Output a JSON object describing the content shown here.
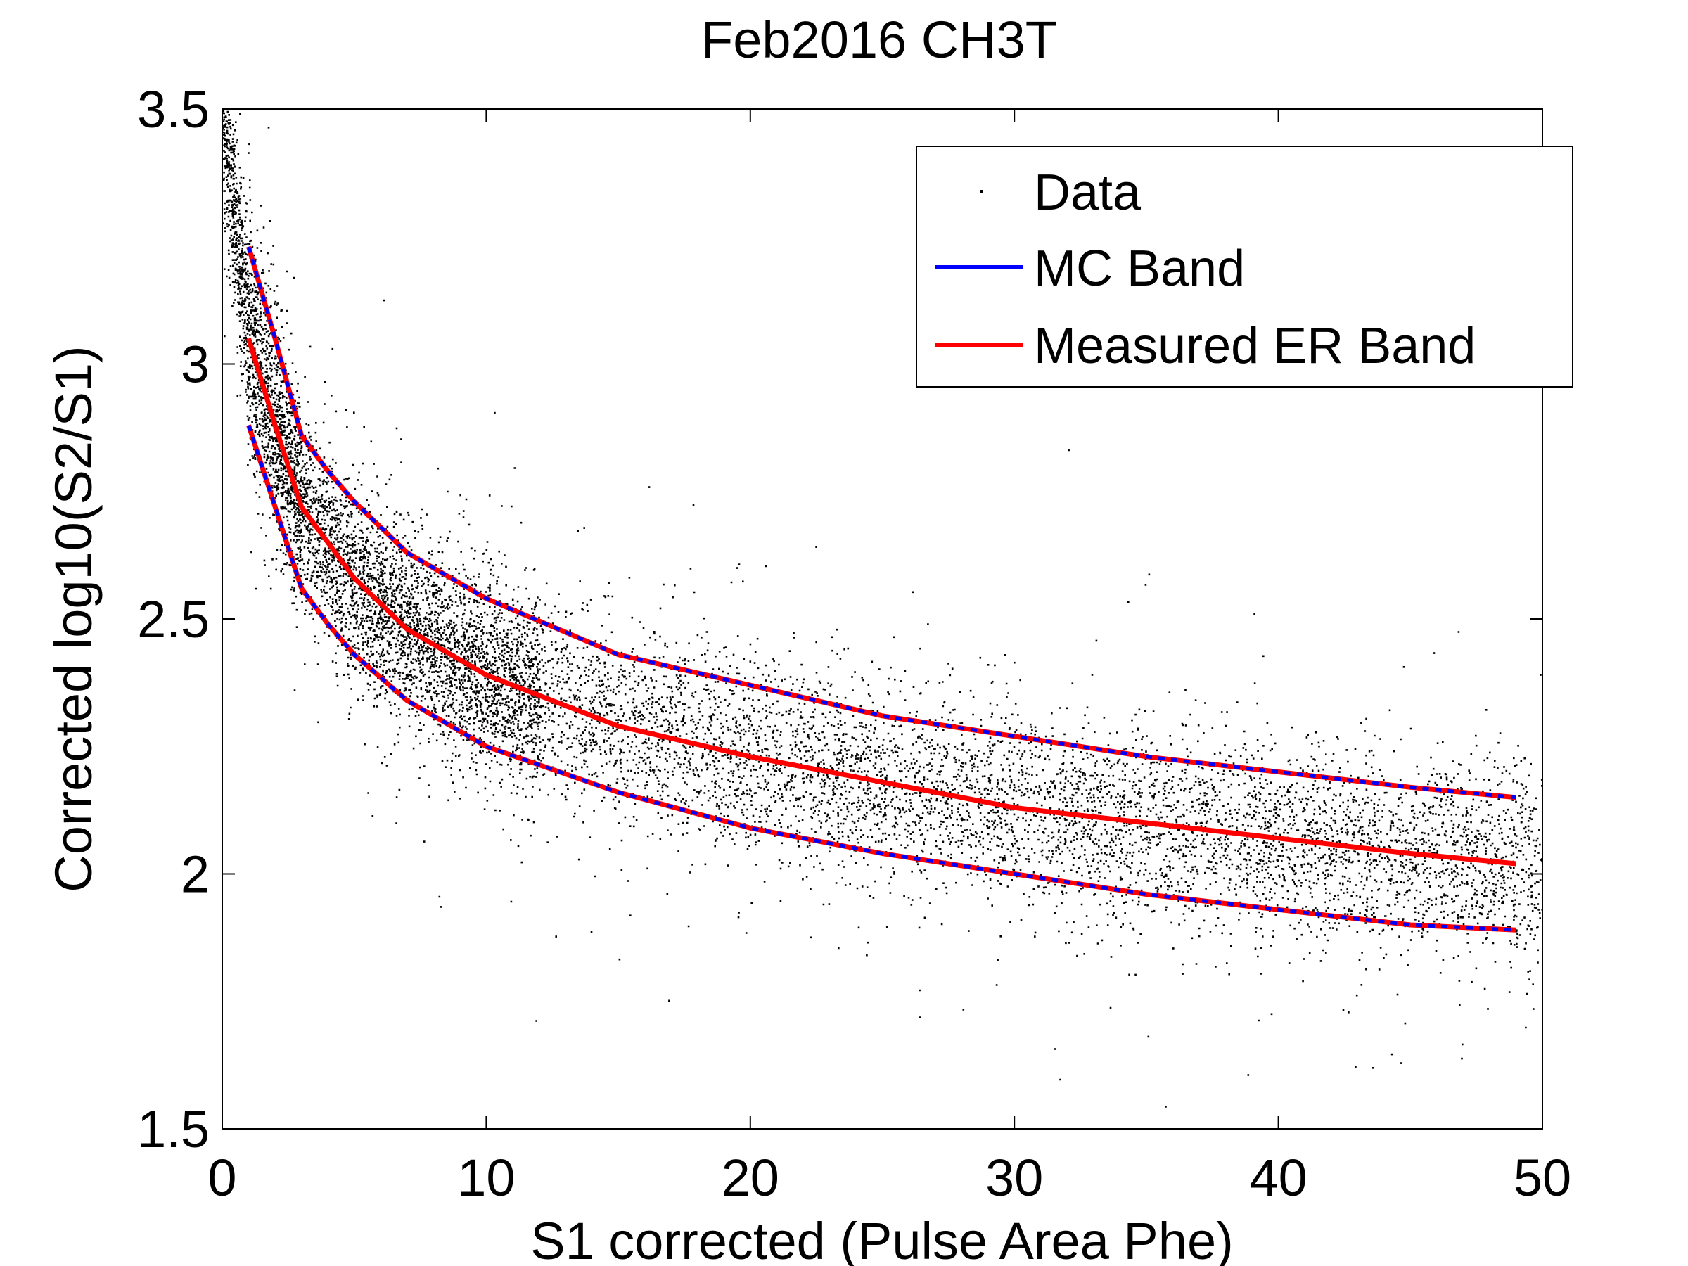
{
  "chart_data": {
    "type": "scatter",
    "title": "Feb2016 CH3T",
    "xlabel": "S1 corrected (Pulse Area Phe)",
    "ylabel": "Corrected log10(S2/S1)",
    "xlim": [
      0,
      50
    ],
    "ylim": [
      1.5,
      3.5
    ],
    "xticks": [
      "0",
      "10",
      "20",
      "30",
      "40",
      "50"
    ],
    "yticks": [
      "1.5",
      "2",
      "2.5",
      "3",
      "3.5"
    ],
    "grid": false,
    "legend": {
      "position": "top-right",
      "entries": [
        {
          "label": "Data",
          "marker": "dot",
          "color": "#000000"
        },
        {
          "label": "MC Band",
          "marker": "line",
          "color": "#0000ff"
        },
        {
          "label": "Measured ER Band",
          "marker": "line",
          "color": "#ff0000"
        }
      ]
    },
    "series": [
      {
        "name": "Data",
        "kind": "scatter",
        "color": "#000000",
        "description_trend": "dense band following the mean curve, spread about ±0.13 in log10",
        "mean_x": [
          1,
          2,
          3,
          4,
          5,
          7,
          10,
          15,
          20,
          25,
          30,
          35,
          40,
          45,
          49
        ],
        "mean_y": [
          3.05,
          2.88,
          2.72,
          2.65,
          2.58,
          2.48,
          2.39,
          2.29,
          2.23,
          2.18,
          2.13,
          2.1,
          2.07,
          2.04,
          2.02
        ],
        "sigma_y": [
          0.11,
          0.1,
          0.09,
          0.09,
          0.09,
          0.09,
          0.09,
          0.09,
          0.09,
          0.09,
          0.09,
          0.09,
          0.09,
          0.09,
          0.09
        ]
      },
      {
        "name": "MC Band",
        "kind": "band",
        "color": "#0000ff",
        "dashed": true,
        "x": [
          1,
          2,
          3,
          4,
          5,
          7,
          10,
          15,
          20,
          25,
          30,
          35,
          40,
          45,
          49
        ],
        "upper": [
          3.23,
          3.05,
          2.86,
          2.79,
          2.73,
          2.63,
          2.54,
          2.43,
          2.37,
          2.31,
          2.27,
          2.23,
          2.2,
          2.17,
          2.15
        ],
        "lower": [
          2.88,
          2.72,
          2.56,
          2.49,
          2.43,
          2.34,
          2.25,
          2.16,
          2.09,
          2.04,
          2.0,
          1.96,
          1.93,
          1.9,
          1.89
        ]
      },
      {
        "name": "Measured ER Band",
        "kind": "band",
        "color": "#ff0000",
        "x": [
          1,
          2,
          3,
          4,
          5,
          7,
          10,
          15,
          20,
          25,
          30,
          35,
          40,
          45,
          49
        ],
        "mean": [
          3.05,
          2.88,
          2.72,
          2.65,
          2.58,
          2.48,
          2.39,
          2.29,
          2.23,
          2.18,
          2.13,
          2.1,
          2.07,
          2.04,
          2.02
        ],
        "upper": [
          3.23,
          3.05,
          2.86,
          2.79,
          2.73,
          2.63,
          2.54,
          2.43,
          2.37,
          2.31,
          2.27,
          2.23,
          2.2,
          2.17,
          2.15
        ],
        "lower": [
          2.88,
          2.72,
          2.56,
          2.49,
          2.43,
          2.34,
          2.25,
          2.16,
          2.09,
          2.04,
          2.0,
          1.96,
          1.93,
          1.9,
          1.89
        ]
      }
    ]
  }
}
